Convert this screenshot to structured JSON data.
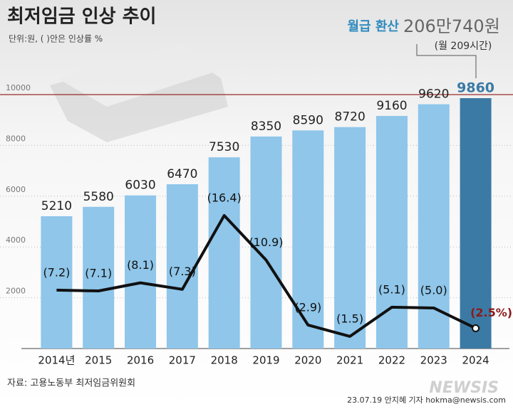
{
  "chart_data": {
    "type": "bar_line",
    "title": "최저임금 인상 추이",
    "subtitle": "단위:원, ( )안은 인상률 %",
    "highlight_label": "월급 환산",
    "highlight_value": "206만740원",
    "highlight_note": "(월 209시간)",
    "source": "자료: 고용노동부 최저임금위원회",
    "credit": "23.07.19 안지혜 기자 hokma@newsis.com",
    "logo": "NEWSIS",
    "categories": [
      "2014년",
      "2015",
      "2016",
      "2017",
      "2018",
      "2019",
      "2020",
      "2021",
      "2022",
      "2023",
      "2024"
    ],
    "series": [
      {
        "type": "bar",
        "color": "#8fc6ea",
        "highlight_color": "#3b7aa4",
        "values": [
          5210,
          5580,
          6030,
          6470,
          7530,
          8350,
          8590,
          8720,
          9160,
          9620,
          9860
        ]
      },
      {
        "type": "line",
        "axis": "y2",
        "color": "#111111",
        "highlight_color": "#8b1a1a",
        "values": [
          7.2,
          7.1,
          8.1,
          7.3,
          16.4,
          10.9,
          2.9,
          1.5,
          5.1,
          5.0,
          2.5
        ],
        "value_labels": [
          "(7.2)",
          "(7.1)",
          "(8.1)",
          "(7.3)",
          "(16.4)",
          "(10.9)",
          "(2.9)",
          "(1.5)",
          "(5.1)",
          "(5.0)",
          "(2.5%)"
        ]
      }
    ],
    "ylim": [
      0,
      10000
    ],
    "yticks": [
      2000,
      4000,
      6000,
      8000,
      10000
    ],
    "y2lim": [
      0,
      31.3
    ],
    "grid": true
  }
}
